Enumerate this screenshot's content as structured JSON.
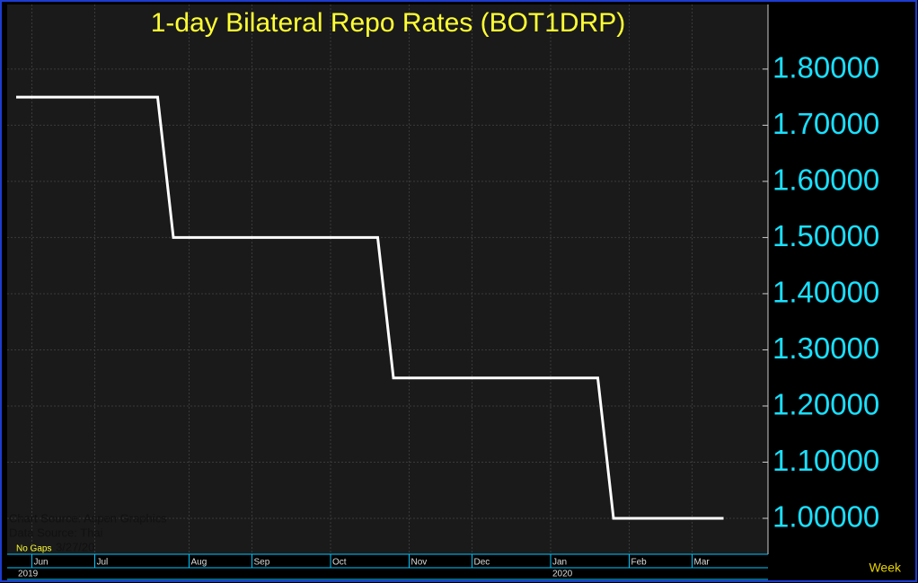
{
  "chart_data": {
    "type": "line",
    "title": "1-day  Bilateral  Repo  Rates  (BOT1DRP)",
    "categories": [
      null,
      "Jun",
      null,
      null,
      null,
      "Jul",
      null,
      null,
      null,
      null,
      null,
      "Aug",
      null,
      null,
      null,
      "Sep",
      null,
      null,
      null,
      null,
      "Oct",
      null,
      null,
      null,
      null,
      "Nov",
      null,
      null,
      null,
      "Dec",
      null,
      null,
      null,
      null,
      "Jan",
      null,
      null,
      null,
      null,
      "Feb",
      null,
      null,
      null,
      "Mar",
      null,
      null
    ],
    "year_categories": [
      "2019",
      null,
      null,
      null,
      null,
      null,
      null,
      null,
      null,
      null,
      null,
      null,
      null,
      null,
      null,
      null,
      null,
      null,
      null,
      null,
      null,
      null,
      null,
      null,
      null,
      null,
      null,
      null,
      null,
      null,
      null,
      null,
      null,
      null,
      "2020",
      null,
      null,
      null,
      null,
      null,
      null,
      null,
      null,
      null,
      null,
      null
    ],
    "series": [
      {
        "name": "BOT1DRP",
        "color": "#ffffff",
        "values": [
          1.75,
          1.75,
          1.75,
          1.75,
          1.75,
          1.75,
          1.75,
          1.75,
          1.75,
          1.75,
          1.5,
          1.5,
          1.5,
          1.5,
          1.5,
          1.5,
          1.5,
          1.5,
          1.5,
          1.5,
          1.5,
          1.5,
          1.5,
          1.5,
          1.25,
          1.25,
          1.25,
          1.25,
          1.25,
          1.25,
          1.25,
          1.25,
          1.25,
          1.25,
          1.25,
          1.25,
          1.25,
          1.25,
          1.0,
          1.0,
          1.0,
          1.0,
          1.0,
          1.0,
          1.0,
          1.0
        ]
      }
    ],
    "ylim": [
      0.936,
      1.915
    ],
    "yticks": [
      {
        "value": 1.0,
        "label": "1.00000"
      },
      {
        "value": 1.1,
        "label": "1.10000"
      },
      {
        "value": 1.2,
        "label": "1.20000"
      },
      {
        "value": 1.3,
        "label": "1.30000"
      },
      {
        "value": 1.4,
        "label": "1.40000"
      },
      {
        "value": 1.5,
        "label": "1.50000"
      },
      {
        "value": 1.6,
        "label": "1.60000"
      },
      {
        "value": 1.7,
        "label": "1.70000"
      },
      {
        "value": 1.8,
        "label": "1.80000"
      }
    ],
    "grid": true,
    "annotations": [
      "Chart Source: Aspen Graphics",
      "Data Source: Thai",
      "3/27/20",
      "No Gaps"
    ],
    "x_unit_label": "Week"
  }
}
